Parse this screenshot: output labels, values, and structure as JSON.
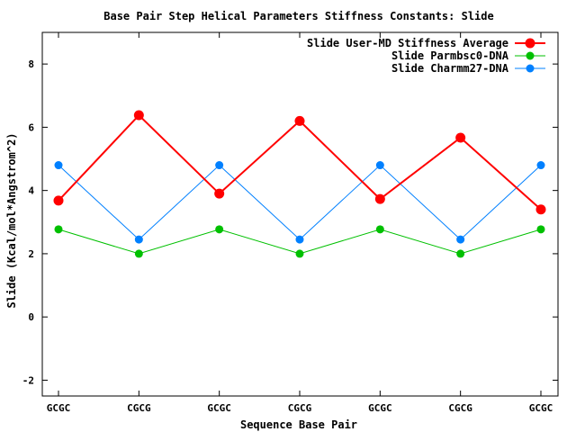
{
  "chart_data": {
    "type": "line",
    "title": "Base Pair Step Helical Parameters Stiffness Constants: Slide",
    "xlabel": "Sequence Base Pair",
    "ylabel": "Slide (Kcal/mol*Angstrom^2)",
    "categories": [
      "GCGC",
      "CGCG",
      "GCGC",
      "CGCG",
      "GCGC",
      "CGCG",
      "GCGC"
    ],
    "ylim": [
      -2.5,
      9
    ],
    "yticks": [
      -2,
      0,
      2,
      4,
      6,
      8
    ],
    "yticks_labels": [
      "-2",
      "0",
      "2",
      "4",
      "6",
      "8"
    ],
    "grid": false,
    "legend_position": "top-right",
    "series": [
      {
        "name": "Slide User-MD Stiffness Average",
        "color": "#ff0000",
        "values": [
          3.68,
          6.38,
          3.9,
          6.2,
          3.73,
          5.67,
          3.4
        ]
      },
      {
        "name": "Slide Parmbsc0-DNA",
        "color": "#00c000",
        "values": [
          2.77,
          2.0,
          2.77,
          2.0,
          2.77,
          2.0,
          2.77
        ]
      },
      {
        "name": "Slide Charmm27-DNA",
        "color": "#0080ff",
        "values": [
          4.8,
          2.45,
          4.8,
          2.45,
          4.8,
          2.45,
          4.8
        ]
      }
    ]
  }
}
